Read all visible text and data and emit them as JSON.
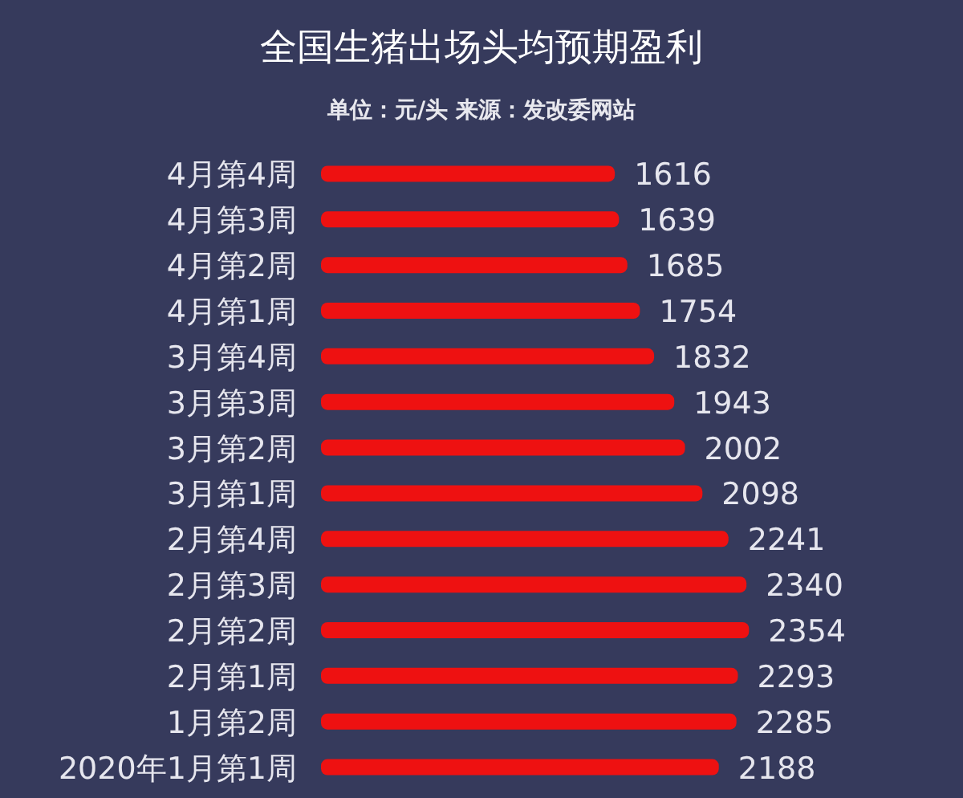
{
  "chart_data": {
    "type": "bar",
    "orientation": "horizontal",
    "title": "全国生猪出场头均预期盈利",
    "subtitle": "单位：元/头 来源：发改委网站",
    "categories": [
      "4月第4周",
      "4月第3周",
      "4月第2周",
      "4月第1周",
      "3月第4周",
      "3月第3周",
      "3月第2周",
      "3月第1周",
      "2月第4周",
      "2月第3周",
      "2月第2周",
      "2月第1周",
      "1月第2周",
      "2020年1月第1周"
    ],
    "values": [
      1616,
      1639,
      1685,
      1754,
      1832,
      1943,
      2002,
      2098,
      2241,
      2340,
      2354,
      2293,
      2285,
      2188
    ],
    "color": "#ee1111",
    "data_labels": true
  }
}
